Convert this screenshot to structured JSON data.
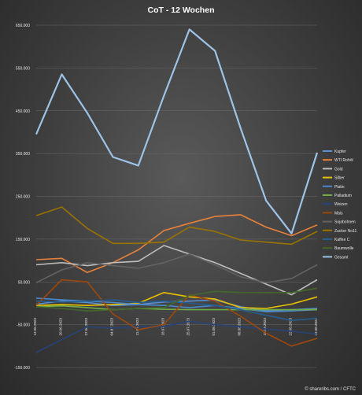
{
  "chart_data": {
    "type": "line",
    "title": "CoT - 12 Wochen",
    "ylim": [
      -150000,
      650000
    ],
    "yticks": [
      -150000,
      -50000,
      50000,
      150000,
      250000,
      350000,
      450000,
      550000,
      650000
    ],
    "ytick_labels": [
      "-150.000",
      "-50.000",
      "50.000",
      "150.000",
      "250.000",
      "350.000",
      "450.000",
      "550.000",
      "650.000"
    ],
    "x": [
      "13.06.2023",
      "20.06.2023",
      "27.06.2023",
      "04.07.2023",
      "11.07.2023",
      "18.07.2023",
      "25.07.2023",
      "01.08.2023",
      "08.08.2023",
      "15.08.2023",
      "22.08.2023",
      "29.08.2023"
    ],
    "grid": true,
    "legend": "right",
    "series": [
      {
        "name": "Kupfer",
        "color": "#5b8fd0",
        "values": [
          -2000,
          5000,
          2000,
          -5000,
          -3000,
          3000,
          5000,
          8000,
          -8000,
          -18000,
          -15000,
          -12000
        ]
      },
      {
        "name": "WTI Rohöl",
        "color": "#e8813a",
        "values": [
          102000,
          105000,
          72000,
          95000,
          125000,
          170000,
          187000,
          203000,
          207000,
          178000,
          158000,
          183000
        ]
      },
      {
        "name": "Gold",
        "color": "#bdbdbd",
        "values": [
          90000,
          95000,
          88000,
          95000,
          98000,
          135000,
          115000,
          95000,
          70000,
          45000,
          20000,
          55000
        ]
      },
      {
        "name": "Silber",
        "color": "#e8c000",
        "values": [
          -5000,
          -3000,
          -5000,
          -3000,
          0,
          25000,
          15000,
          10000,
          -10000,
          -12000,
          -2000,
          15000
        ]
      },
      {
        "name": "Platin",
        "color": "#4a86c8",
        "values": [
          12000,
          8000,
          5000,
          2000,
          -3000,
          -5000,
          -10000,
          -5000,
          -12000,
          -20000,
          -18000,
          -15000
        ]
      },
      {
        "name": "Palladium",
        "color": "#70ad47",
        "values": [
          -8000,
          -6000,
          -10000,
          -15000,
          -12000,
          -14000,
          -15000,
          -15000,
          -15000,
          -15000,
          -15000,
          -15000
        ]
      },
      {
        "name": "Weizen",
        "color": "#264478",
        "values": [
          -115000,
          -85000,
          -55000,
          -58000,
          -55000,
          -55000,
          -42000,
          -50000,
          -55000,
          -60000,
          -65000,
          -72000
        ]
      },
      {
        "name": "Mais",
        "color": "#9e480e",
        "values": [
          -5000,
          55000,
          50000,
          -25000,
          -62000,
          -50000,
          20000,
          5000,
          -30000,
          -70000,
          -100000,
          -82000
        ]
      },
      {
        "name": "Sojabohnen",
        "color": "#636363",
        "values": [
          48000,
          78000,
          95000,
          88000,
          82000,
          95000,
          115000,
          90000,
          62000,
          48000,
          58000,
          90000
        ]
      },
      {
        "name": "Zucker No11",
        "color": "#997300",
        "values": [
          205000,
          225000,
          175000,
          140000,
          140000,
          143000,
          178000,
          168000,
          148000,
          143000,
          138000,
          168000
        ]
      },
      {
        "name": "Kaffee C",
        "color": "#255e91",
        "values": [
          5000,
          3000,
          5000,
          8000,
          2000,
          5000,
          0,
          -5000,
          -15000,
          -28000,
          -40000,
          -35000
        ]
      },
      {
        "name": "Baumwolle",
        "color": "#43682b",
        "values": [
          -8000,
          -12000,
          -18000,
          -15000,
          -12000,
          -10000,
          18000,
          28000,
          25000,
          25000,
          25000,
          35000
        ]
      },
      {
        "name": "Gesamt",
        "color": "#9dc3e6",
        "values": [
          395000,
          535000,
          445000,
          342000,
          322000,
          485000,
          640000,
          590000,
          410000,
          240000,
          163000,
          352000
        ]
      }
    ],
    "source_label": "© shareribs.com / CFTC"
  }
}
